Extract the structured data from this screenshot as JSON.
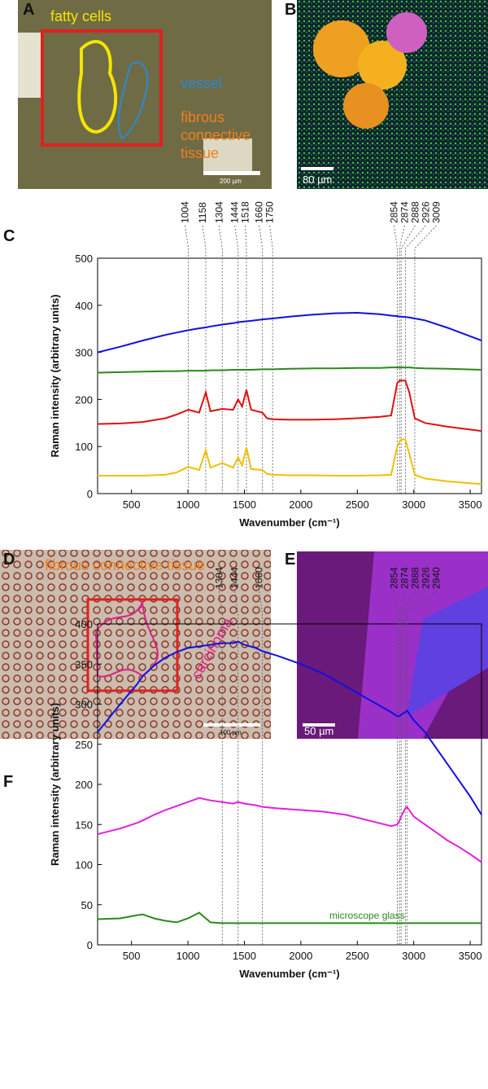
{
  "panels": [
    {
      "letter": "A",
      "labels": [
        "fatty cells",
        "vessel",
        "fibrous",
        "connective",
        "tissue",
        "200 µm"
      ]
    },
    {
      "letter": "B",
      "labels": [
        "80 µm"
      ]
    },
    {
      "letter": "D",
      "labels": [
        "fibrous connective tissue",
        "carcinoma",
        "100 µm"
      ]
    },
    {
      "letter": "E",
      "labels": [
        "50 µm"
      ]
    }
  ],
  "chart_data": [
    {
      "type": "line",
      "panel_label": "C",
      "x_label": "Wavenumber (cm⁻¹)",
      "y_label": "Raman intensity (arbitrary units)",
      "xlim": [
        200,
        3600
      ],
      "ylim": [
        0,
        500
      ],
      "xticks": [
        500,
        1000,
        1500,
        2000,
        2500,
        3000,
        3500
      ],
      "yticks": [
        0,
        100,
        200,
        300,
        400,
        500
      ],
      "peaks": [
        1004,
        1158,
        1304,
        1444,
        1518,
        1660,
        1750,
        2854,
        2874,
        2888,
        2926,
        3009
      ],
      "x": [
        200,
        400,
        600,
        800,
        900,
        1004,
        1100,
        1158,
        1200,
        1304,
        1400,
        1444,
        1480,
        1518,
        1560,
        1660,
        1700,
        1750,
        1900,
        2100,
        2300,
        2500,
        2700,
        2800,
        2854,
        2874,
        2888,
        2926,
        2960,
        3009,
        3100,
        3300,
        3600
      ],
      "series": [
        {
          "color": "#1010e0",
          "values": [
            300,
            312,
            325,
            337,
            342,
            347,
            351,
            353,
            355,
            359,
            362,
            364,
            365,
            366,
            367,
            370,
            371,
            372,
            376,
            380,
            383,
            384,
            381,
            378,
            377,
            376,
            376,
            375,
            374,
            372,
            368,
            352,
            325
          ]
        },
        {
          "color": "#2a8a1a",
          "values": [
            257,
            258,
            259,
            260,
            260,
            261,
            261,
            261,
            262,
            262,
            263,
            263,
            263,
            263,
            263,
            264,
            264,
            264,
            265,
            266,
            266,
            267,
            267,
            268,
            268,
            268,
            268,
            268,
            268,
            267,
            266,
            265,
            263
          ]
        },
        {
          "color": "#e01010",
          "values": [
            148,
            149,
            152,
            160,
            168,
            178,
            172,
            215,
            175,
            180,
            178,
            200,
            185,
            220,
            178,
            172,
            160,
            158,
            157,
            157,
            158,
            160,
            163,
            166,
            235,
            240,
            240,
            240,
            215,
            160,
            150,
            142,
            133
          ]
        },
        {
          "color": "#f0c000",
          "values": [
            38,
            38,
            38,
            40,
            45,
            57,
            50,
            92,
            55,
            65,
            55,
            77,
            60,
            98,
            52,
            50,
            42,
            40,
            39,
            39,
            38,
            38,
            39,
            40,
            100,
            110,
            115,
            115,
            85,
            40,
            32,
            26,
            20
          ]
        }
      ]
    },
    {
      "type": "line",
      "panel_label": "F",
      "x_label": "Wavenumber (cm⁻¹)",
      "y_label": "Raman intensity (arbitrary units)",
      "xlim": [
        200,
        3600
      ],
      "ylim": [
        0,
        400
      ],
      "xticks": [
        500,
        1000,
        1500,
        2000,
        2500,
        3000,
        3500
      ],
      "yticks": [
        0,
        50,
        100,
        150,
        200,
        250,
        300,
        350,
        400
      ],
      "peaks": [
        1304,
        1444,
        1660,
        2854,
        2874,
        2888,
        2926,
        2940
      ],
      "annotation": "microscope glass",
      "x": [
        200,
        400,
        550,
        600,
        700,
        800,
        900,
        1000,
        1100,
        1200,
        1304,
        1400,
        1444,
        1500,
        1600,
        1660,
        1800,
        2000,
        2200,
        2400,
        2600,
        2800,
        2854,
        2874,
        2888,
        2926,
        2940,
        3000,
        3100,
        3200,
        3300,
        3400,
        3500,
        3600
      ],
      "series": [
        {
          "color": "#1010e0",
          "values": [
            265,
            300,
            325,
            335,
            348,
            358,
            365,
            370,
            372,
            374,
            376,
            376,
            378,
            374,
            370,
            366,
            360,
            350,
            338,
            322,
            306,
            290,
            285,
            285,
            287,
            290,
            292,
            280,
            265,
            245,
            225,
            205,
            185,
            162
          ]
        },
        {
          "color": "#e020e0",
          "values": [
            138,
            145,
            152,
            155,
            162,
            168,
            173,
            178,
            183,
            180,
            178,
            176,
            178,
            176,
            174,
            172,
            170,
            168,
            166,
            162,
            155,
            148,
            150,
            155,
            160,
            170,
            172,
            160,
            150,
            140,
            130,
            122,
            113,
            103
          ]
        },
        {
          "color": "#2a8a1a",
          "values": [
            32,
            33,
            37,
            38,
            33,
            30,
            28,
            33,
            40,
            28,
            27,
            27,
            27,
            27,
            27,
            27,
            27,
            27,
            27,
            27,
            27,
            27,
            27,
            27,
            27,
            27,
            27,
            27,
            27,
            27,
            27,
            27,
            27,
            27
          ]
        }
      ]
    }
  ]
}
